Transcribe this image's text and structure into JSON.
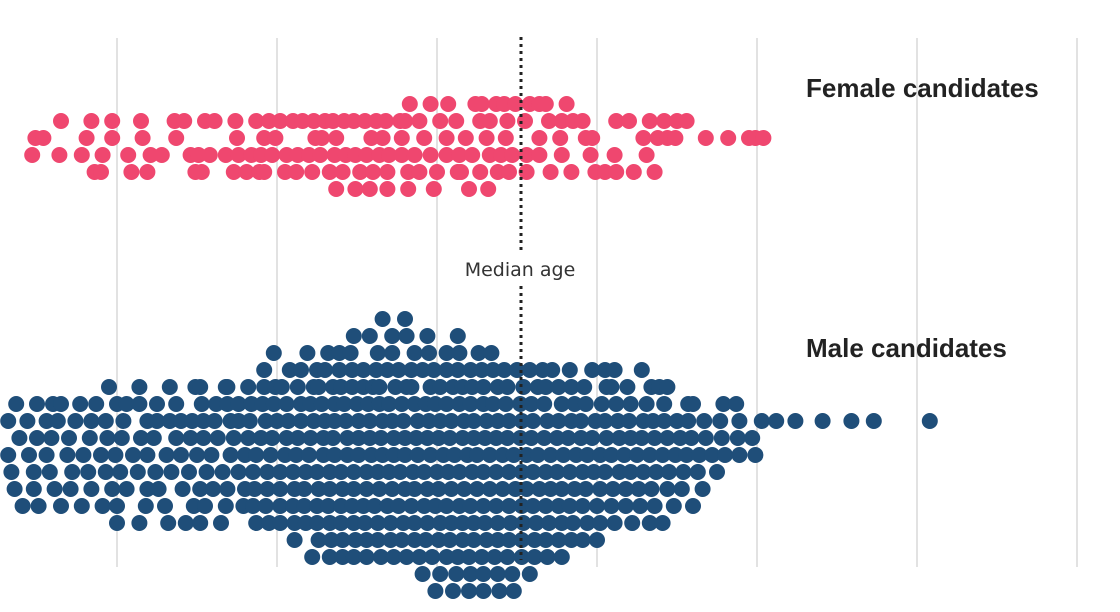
{
  "chart_data": {
    "type": "scatter",
    "subtype": "beeswarm",
    "grid": "vertical",
    "median_line": {
      "label": "Median age",
      "style": "dotted"
    },
    "colors": {
      "female": "#ef476f",
      "male": "#1f4e79",
      "grid": "#d9d9d9",
      "median": "#222222"
    },
    "series": [
      {
        "name": "Female candidates",
        "rows": [
          {
            "level": -2,
            "values": [
              23.3,
              24.6,
              25.7,
              27.4,
              27.8,
              28.7,
              29.2,
              29.9,
              30.8,
              31.4,
              31.8,
              33.1
            ]
          },
          {
            "level": -1,
            "values": [
              1.5,
              3.4,
              4.7,
              6.5,
              8.6,
              9.2,
              10.5,
              11.1,
              12.4,
              13.7,
              14.5,
              15.2,
              16.0,
              16.6,
              17.3,
              18.0,
              18.5,
              19.2,
              19.8,
              20.5,
              21.2,
              21.8,
              22.7,
              23.0,
              23.9,
              25.2,
              26.2,
              27.7,
              28.3,
              29.4,
              30.5,
              32.0,
              32.8,
              33.5,
              34.1,
              36.2,
              37.0,
              38.3,
              39.2,
              40.0,
              40.6
            ]
          },
          {
            "level": 0,
            "values": [
              -0.1,
              0.4,
              3.1,
              4.7,
              6.6,
              8.7,
              12.5,
              14.2,
              14.9,
              17.4,
              17.8,
              18.7,
              20.9,
              21.6,
              22.8,
              24.2,
              25.6,
              26.8,
              28.1,
              29.3,
              31.4,
              32.7,
              34.3,
              34.7,
              37.9,
              38.8,
              39.4,
              39.9,
              41.8,
              43.2,
              44.5,
              44.9,
              45.4
            ]
          },
          {
            "level": 1,
            "values": [
              -0.3,
              1.4,
              2.8,
              4.1,
              5.7,
              7.1,
              7.8,
              9.6,
              10.1,
              10.8,
              11.8,
              12.6,
              13.4,
              14.0,
              14.7,
              15.6,
              16.3,
              17.0,
              17.7,
              18.6,
              19.3,
              19.9,
              20.6,
              21.4,
              22.0,
              22.8,
              23.6,
              24.6,
              25.6,
              26.4,
              27.2,
              28.3,
              29.0,
              29.7,
              30.6,
              31.4,
              32.8,
              34.6,
              36.1,
              38.1
            ]
          },
          {
            "level": 2,
            "values": [
              3.6,
              4.0,
              5.9,
              6.9,
              9.9,
              10.3,
              12.3,
              13.1,
              13.9,
              14.2,
              15.5,
              16.2,
              17.2,
              18.3,
              19.1,
              20.2,
              21.0,
              21.9,
              23.2,
              23.9,
              25.0,
              26.3,
              26.5,
              27.7,
              28.8,
              29.5,
              30.6,
              32.1,
              33.4,
              34.9,
              35.5,
              36.2,
              37.3,
              38.6
            ]
          },
          {
            "level": 3,
            "values": [
              18.7,
              19.9,
              20.8,
              21.9,
              23.2,
              24.8,
              27.0,
              28.2
            ]
          }
        ]
      },
      {
        "name": "Male candidates",
        "rows": [
          {
            "level": -8,
            "values": [
              21.6,
              23.0
            ]
          },
          {
            "level": -7,
            "values": [
              19.8,
              20.8,
              22.2,
              23.1,
              24.4,
              26.3
            ]
          },
          {
            "level": -6,
            "values": [
              14.8,
              16.9,
              18.2,
              18.9,
              19.6,
              21.3,
              22.2,
              23.6,
              24.5,
              25.6,
              26.4,
              27.6,
              28.4
            ]
          },
          {
            "level": -5,
            "values": [
              14.2,
              15.8,
              16.5,
              17.5,
              18.0,
              18.9,
              19.7,
              20.4,
              21.2,
              21.9,
              22.6,
              23.4,
              24.1,
              24.8,
              25.6,
              26.3,
              27.1,
              27.8,
              28.5,
              29.2,
              30.0,
              30.8,
              31.6,
              32.2,
              33.3,
              34.7,
              35.5,
              36.1,
              37.8
            ]
          },
          {
            "level": -4,
            "values": [
              4.5,
              6.4,
              8.3,
              9.9,
              10.2,
              11.8,
              11.9,
              13.2,
              14.2,
              14.9,
              15.3,
              16.3,
              17.3,
              17.6,
              18.5,
              19.0,
              19.7,
              20.4,
              21.0,
              21.4,
              22.4,
              23.1,
              23.4,
              24.6,
              25.2,
              26.0,
              26.6,
              27.2,
              27.9,
              28.8,
              29.4,
              30.4,
              31.3,
              31.8,
              32.6,
              33.4,
              34.2,
              35.6,
              35.9,
              36.9,
              38.4,
              38.9,
              39.4
            ]
          },
          {
            "level": -3,
            "values": [
              -1.3,
              0.0,
              1.0,
              1.5,
              2.7,
              3.7,
              5.0,
              5.6,
              6.4,
              7.5,
              8.7,
              10.3,
              11.2,
              11.9,
              12.6,
              13.4,
              14.1,
              14.8,
              15.6,
              16.5,
              17.1,
              17.8,
              18.6,
              19.2,
              20.0,
              20.7,
              21.4,
              22.0,
              22.8,
              23.6,
              24.3,
              24.9,
              25.6,
              26.4,
              27.1,
              27.9,
              28.5,
              29.3,
              30.2,
              30.9,
              31.7,
              32.8,
              33.6,
              34.3,
              35.3,
              36.2,
              37.1,
              38.1,
              39.2,
              40.7,
              41.0,
              42.9,
              43.7
            ]
          },
          {
            "level": -2,
            "values": [
              -1.8,
              -0.6,
              0.6,
              1.3,
              2.4,
              3.4,
              4.3,
              5.4,
              6.9,
              7.5,
              8.3,
              9.0,
              9.7,
              10.4,
              11.1,
              12.1,
              12.6,
              13.3,
              14.3,
              15.0,
              15.7,
              16.5,
              17.3,
              18.0,
              18.6,
              19.3,
              20.1,
              20.8,
              21.6,
              22.2,
              22.9,
              23.8,
              24.5,
              25.2,
              25.9,
              26.7,
              27.3,
              28.1,
              28.8,
              29.5,
              30.3,
              31.0,
              31.9,
              32.6,
              33.4,
              34.0,
              34.9,
              35.5,
              36.3,
              37.0,
              37.9,
              38.5,
              39.2,
              40.0,
              40.7,
              41.7,
              42.7,
              43.9,
              45.3,
              46.2,
              47.4,
              49.1,
              50.9,
              52.3,
              55.8
            ]
          },
          {
            "level": -1,
            "values": [
              -1.1,
              0.0,
              0.9,
              2.0,
              3.3,
              4.4,
              5.3,
              6.5,
              7.3,
              8.7,
              9.6,
              10.4,
              11.3,
              12.3,
              13.2,
              14.0,
              14.7,
              15.6,
              16.3,
              17.1,
              17.9,
              18.5,
              19.4,
              20.1,
              20.8,
              21.5,
              22.3,
              23.0,
              23.7,
              24.4,
              25.1,
              25.8,
              26.6,
              27.3,
              28.0,
              28.7,
              29.4,
              30.2,
              30.9,
              31.7,
              32.5,
              33.2,
              34.0,
              34.7,
              35.6,
              36.4,
              37.1,
              37.8,
              38.6,
              39.4,
              40.2,
              40.9,
              41.8,
              42.8,
              43.8,
              44.7
            ]
          },
          {
            "level": 0,
            "values": [
              -1.8,
              -0.5,
              0.6,
              1.9,
              2.9,
              4.0,
              4.9,
              6.0,
              6.9,
              8.1,
              9.0,
              10.0,
              10.9,
              12.1,
              13.0,
              13.7,
              14.6,
              15.5,
              16.2,
              17.0,
              17.9,
              18.6,
              19.4,
              20.1,
              20.9,
              21.6,
              22.3,
              23.0,
              23.8,
              24.6,
              25.4,
              26.1,
              26.9,
              27.5,
              28.3,
              29.1,
              29.8,
              30.6,
              31.3,
              32.1,
              32.9,
              33.7,
              34.4,
              35.2,
              35.9,
              36.7,
              37.5,
              38.3,
              39.1,
              39.9,
              40.6,
              41.4,
              42.2,
              43.0,
              43.9,
              44.9
            ]
          },
          {
            "level": 1,
            "values": [
              -1.6,
              -0.2,
              0.8,
              2.2,
              3.2,
              4.3,
              5.2,
              6.3,
              7.4,
              8.4,
              9.5,
              10.6,
              11.6,
              12.6,
              13.5,
              14.4,
              15.2,
              16.0,
              16.8,
              17.5,
              18.3,
              19.0,
              19.8,
              20.6,
              21.3,
              22.0,
              22.7,
              23.5,
              24.2,
              25.0,
              25.7,
              26.4,
              27.2,
              27.9,
              28.7,
              29.5,
              30.3,
              31.0,
              31.8,
              32.5,
              33.3,
              34.1,
              34.8,
              35.5,
              36.4,
              37.1,
              37.9,
              38.7,
              39.5,
              40.4,
              41.3,
              42.5
            ]
          },
          {
            "level": 2,
            "values": [
              -1.4,
              -0.2,
              1.1,
              2.1,
              3.4,
              4.7,
              5.6,
              6.9,
              7.6,
              9.1,
              10.2,
              11.0,
              11.9,
              13.0,
              13.6,
              14.4,
              15.2,
              16.1,
              16.7,
              17.6,
              18.3,
              19.1,
              19.8,
              20.6,
              21.4,
              22.2,
              23.0,
              23.6,
              24.4,
              25.1,
              25.9,
              26.7,
              27.5,
              28.3,
              29.1,
              29.9,
              30.6,
              31.4,
              32.1,
              32.8,
              33.6,
              34.3,
              35.2,
              36.0,
              36.8,
              37.6,
              38.4,
              39.4,
              40.3,
              41.6
            ]
          },
          {
            "level": 3,
            "values": [
              -0.9,
              0.1,
              1.5,
              2.8,
              4.1,
              5.0,
              6.8,
              8.0,
              9.8,
              10.5,
              11.8,
              12.9,
              13.5,
              14.3,
              15.2,
              16.0,
              16.7,
              17.5,
              18.2,
              19.0,
              19.7,
              20.4,
              21.1,
              21.9,
              22.6,
              23.4,
              24.2,
              24.9,
              25.6,
              26.4,
              27.1,
              27.9,
              28.7,
              29.5,
              30.3,
              31.0,
              31.8,
              32.6,
              33.3,
              34.1,
              35.0,
              35.9,
              36.8,
              37.7,
              38.6,
              39.8,
              41.0
            ]
          },
          {
            "level": 4,
            "values": [
              5.0,
              6.4,
              8.2,
              9.3,
              10.2,
              11.5,
              13.7,
              14.5,
              15.2,
              16.1,
              16.8,
              17.5,
              18.3,
              19.0,
              19.8,
              20.5,
              21.3,
              22.1,
              22.9,
              23.6,
              24.4,
              25.2,
              25.9,
              26.6,
              27.3,
              28.0,
              28.8,
              29.6,
              30.4,
              31.2,
              32.0,
              32.8,
              33.5,
              34.4,
              35.2,
              36.1,
              37.2,
              38.3,
              39.1
            ]
          },
          {
            "level": 5,
            "values": [
              16.1,
              17.6,
              18.4,
              19.1,
              19.9,
              20.6,
              21.3,
              22.1,
              22.8,
              23.6,
              24.3,
              25.1,
              25.8,
              26.6,
              27.3,
              28.1,
              28.8,
              29.5,
              30.3,
              31.1,
              31.8,
              32.6,
              33.4,
              34.1,
              35.0
            ]
          },
          {
            "level": 6,
            "values": [
              17.2,
              18.3,
              19.1,
              19.8,
              20.6,
              21.5,
              22.3,
              23.1,
              23.9,
              24.7,
              25.6,
              26.3,
              27.0,
              27.8,
              28.6,
              29.4,
              30.3,
              31.1,
              31.9,
              32.8
            ]
          },
          {
            "level": 7,
            "values": [
              24.1,
              25.2,
              26.2,
              27.1,
              27.9,
              28.8,
              29.7,
              30.8
            ]
          },
          {
            "level": 8,
            "values": [
              24.9,
              26.0,
              27.0,
              27.9,
              28.9,
              29.8
            ]
          }
        ]
      }
    ]
  }
}
